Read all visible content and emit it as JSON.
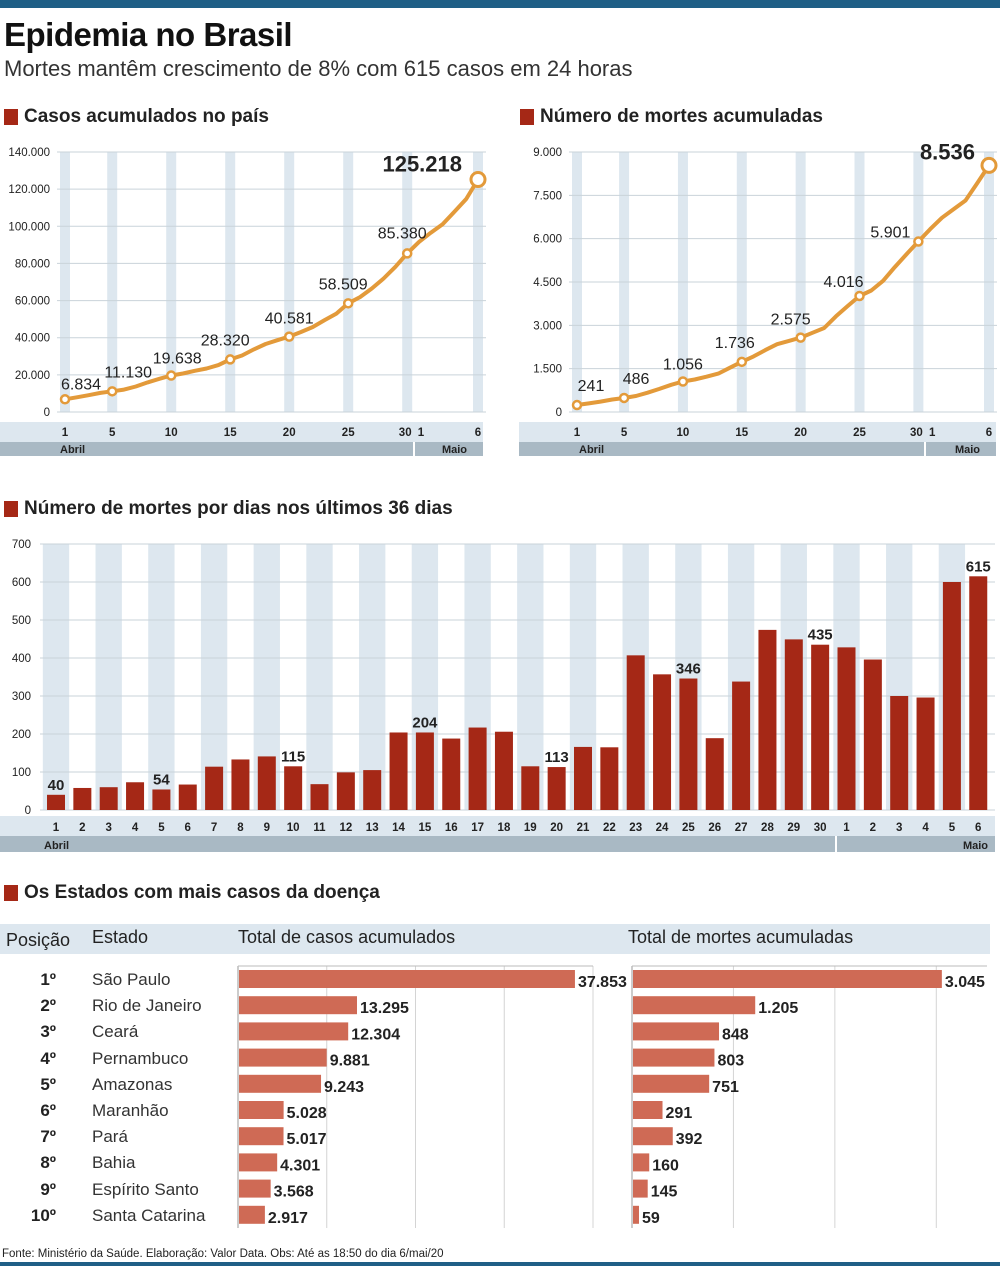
{
  "header": {
    "title": "Epidemia no Brasil",
    "subtitle": "Mortes mantêm crescimento de 8% com 615 casos em 24 horas"
  },
  "colors": {
    "accent": "#a52816",
    "line": "#e39a3a",
    "band": "#dde7ef",
    "axisbar": "#a9b9c4",
    "topbar": "#1f5f86"
  },
  "chart_data": [
    {
      "type": "line",
      "title": "Casos acumulados no país",
      "ylim": [
        0,
        140000
      ],
      "yticks": [
        0,
        20000,
        40000,
        60000,
        80000,
        100000,
        120000,
        140000
      ],
      "ytick_labels": [
        "0",
        "20.000",
        "40.000",
        "60.000",
        "80.000",
        "100.000",
        "120.000",
        "140.000"
      ],
      "xtick_labels": [
        "1",
        "5",
        "10",
        "15",
        "20",
        "25",
        "30",
        "1",
        "6"
      ],
      "month_labels": [
        "Abril",
        "Maio"
      ],
      "x": [
        1,
        2,
        3,
        4,
        5,
        6,
        7,
        8,
        9,
        10,
        11,
        12,
        13,
        14,
        15,
        16,
        17,
        18,
        19,
        20,
        21,
        22,
        23,
        24,
        25,
        26,
        27,
        28,
        29,
        30,
        31,
        32,
        33,
        34,
        35,
        36
      ],
      "values": [
        6834,
        7910,
        9056,
        10278,
        11130,
        12056,
        13717,
        15927,
        17857,
        19638,
        20727,
        22169,
        23430,
        25262,
        28320,
        30425,
        33682,
        36599,
        38654,
        40581,
        43079,
        45757,
        49492,
        52995,
        58509,
        61888,
        66501,
        71886,
        78162,
        85380,
        91589,
        96559,
        101147,
        107780,
        114715,
        125218
      ],
      "labeled_points": [
        {
          "index": 0,
          "label": "6.834"
        },
        {
          "index": 4,
          "label": "11.130"
        },
        {
          "index": 9,
          "label": "19.638"
        },
        {
          "index": 14,
          "label": "28.320"
        },
        {
          "index": 19,
          "label": "40.581"
        },
        {
          "index": 24,
          "label": "58.509"
        },
        {
          "index": 29,
          "label": "85.380"
        },
        {
          "index": 35,
          "label": "125.218"
        }
      ]
    },
    {
      "type": "line",
      "title": "Número de mortes acumuladas",
      "ylim": [
        0,
        9000
      ],
      "yticks": [
        0,
        1500,
        3000,
        4500,
        6000,
        7500,
        9000
      ],
      "ytick_labels": [
        "0",
        "1.500",
        "3.000",
        "4.500",
        "6.000",
        "7.500",
        "9.000"
      ],
      "xtick_labels": [
        "1",
        "5",
        "10",
        "15",
        "20",
        "25",
        "30",
        "1",
        "6"
      ],
      "month_labels": [
        "Abril",
        "Maio"
      ],
      "x": [
        1,
        2,
        3,
        4,
        5,
        6,
        7,
        8,
        9,
        10,
        11,
        12,
        13,
        14,
        15,
        16,
        17,
        18,
        19,
        20,
        21,
        22,
        23,
        24,
        25,
        26,
        27,
        28,
        29,
        30,
        31,
        32,
        33,
        34,
        35,
        36
      ],
      "values": [
        241,
        299,
        359,
        432,
        486,
        553,
        667,
        800,
        941,
        1056,
        1124,
        1223,
        1328,
        1532,
        1736,
        1924,
        2141,
        2347,
        2462,
        2575,
        2741,
        2906,
        3313,
        3670,
        4016,
        4205,
        4543,
        5017,
        5466,
        5901,
        6329,
        6724,
        7025,
        7321,
        7921,
        8536
      ],
      "labeled_points": [
        {
          "index": 0,
          "label": "241"
        },
        {
          "index": 4,
          "label": "486"
        },
        {
          "index": 9,
          "label": "1.056"
        },
        {
          "index": 14,
          "label": "1.736"
        },
        {
          "index": 19,
          "label": "2.575"
        },
        {
          "index": 24,
          "label": "4.016"
        },
        {
          "index": 29,
          "label": "5.901"
        },
        {
          "index": 35,
          "label": "8.536"
        }
      ]
    },
    {
      "type": "bar",
      "title": "Número de mortes por dias nos últimos 36 dias",
      "ylim": [
        0,
        700
      ],
      "yticks": [
        0,
        100,
        200,
        300,
        400,
        500,
        600,
        700
      ],
      "ytick_labels": [
        "0",
        "100",
        "200",
        "300",
        "400",
        "500",
        "600",
        "700"
      ],
      "categories": [
        "1",
        "2",
        "3",
        "4",
        "5",
        "6",
        "7",
        "8",
        "9",
        "10",
        "11",
        "12",
        "13",
        "14",
        "15",
        "16",
        "17",
        "18",
        "19",
        "20",
        "21",
        "22",
        "23",
        "24",
        "25",
        "26",
        "27",
        "28",
        "29",
        "30",
        "1",
        "2",
        "3",
        "4",
        "5",
        "6"
      ],
      "month_labels": [
        "Abril",
        "Maio"
      ],
      "values": [
        40,
        58,
        60,
        73,
        54,
        67,
        114,
        133,
        141,
        115,
        68,
        99,
        105,
        204,
        204,
        188,
        217,
        206,
        115,
        113,
        166,
        165,
        407,
        357,
        346,
        189,
        338,
        474,
        449,
        435,
        428,
        396,
        300,
        296,
        600,
        615
      ],
      "labeled_bars": [
        {
          "index": 0,
          "label": "40"
        },
        {
          "index": 4,
          "label": "54"
        },
        {
          "index": 9,
          "label": "115"
        },
        {
          "index": 14,
          "label": "204"
        },
        {
          "index": 19,
          "label": "113"
        },
        {
          "index": 24,
          "label": "346"
        },
        {
          "index": 29,
          "label": "435"
        },
        {
          "index": 35,
          "label": "615"
        }
      ]
    },
    {
      "type": "table",
      "title": "Os Estados com mais casos da doença",
      "columns": [
        "Posição",
        "Estado",
        "Total de casos acumulados",
        "Total de mortes acumuladas"
      ],
      "rows": [
        {
          "pos": "1º",
          "state": "São Paulo",
          "cases": 37853,
          "cases_label": "37.853",
          "deaths": 3045,
          "deaths_label": "3.045"
        },
        {
          "pos": "2º",
          "state": "Rio de Janeiro",
          "cases": 13295,
          "cases_label": "13.295",
          "deaths": 1205,
          "deaths_label": "1.205"
        },
        {
          "pos": "3º",
          "state": "Ceará",
          "cases": 12304,
          "cases_label": "12.304",
          "deaths": 848,
          "deaths_label": "848"
        },
        {
          "pos": "4º",
          "state": "Pernambuco",
          "cases": 9881,
          "cases_label": "9.881",
          "deaths": 803,
          "deaths_label": "803"
        },
        {
          "pos": "5º",
          "state": "Amazonas",
          "cases": 9243,
          "cases_label": "9.243",
          "deaths": 751,
          "deaths_label": "751"
        },
        {
          "pos": "6º",
          "state": "Maranhão",
          "cases": 5028,
          "cases_label": "5.028",
          "deaths": 291,
          "deaths_label": "291"
        },
        {
          "pos": "7º",
          "state": "Pará",
          "cases": 5017,
          "cases_label": "5.017",
          "deaths": 392,
          "deaths_label": "392"
        },
        {
          "pos": "8º",
          "state": "Bahia",
          "cases": 4301,
          "cases_label": "4.301",
          "deaths": 160,
          "deaths_label": "160"
        },
        {
          "pos": "9º",
          "state": "Espírito Santo",
          "cases": 3568,
          "cases_label": "3.568",
          "deaths": 145,
          "deaths_label": "145"
        },
        {
          "pos": "10º",
          "state": "Santa Catarina",
          "cases": 2917,
          "cases_label": "2.917",
          "deaths": 59,
          "deaths_label": "59"
        }
      ]
    }
  ],
  "footer": {
    "source": "Fonte: Ministério da Saúde. Elaboração: Valor Data. Obs: Até as 18:50 do dia 6/mai/20"
  }
}
